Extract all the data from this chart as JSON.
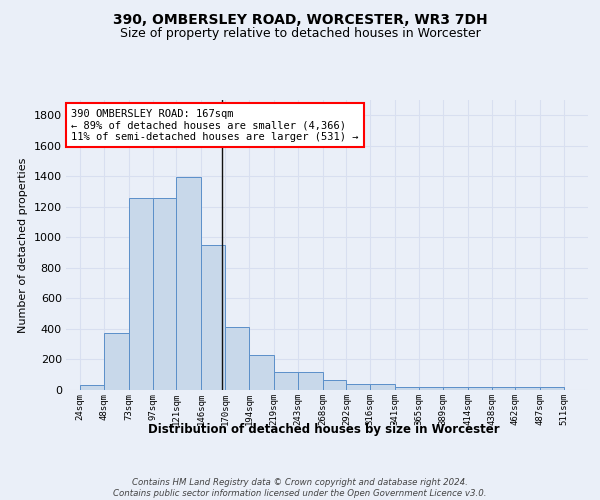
{
  "title1": "390, OMBERSLEY ROAD, WORCESTER, WR3 7DH",
  "title2": "Size of property relative to detached houses in Worcester",
  "xlabel": "Distribution of detached houses by size in Worcester",
  "ylabel": "Number of detached properties",
  "footnote": "Contains HM Land Registry data © Crown copyright and database right 2024.\nContains public sector information licensed under the Open Government Licence v3.0.",
  "bar_left_edges": [
    24,
    48,
    73,
    97,
    121,
    146,
    170,
    194,
    219,
    243,
    268,
    292,
    316,
    341,
    365,
    389,
    414,
    438,
    462,
    487
  ],
  "bar_heights": [
    30,
    375,
    1255,
    1255,
    1395,
    950,
    410,
    230,
    115,
    115,
    68,
    42,
    42,
    18,
    18,
    18,
    18,
    18,
    18,
    18
  ],
  "bar_widths": [
    24,
    25,
    24,
    24,
    25,
    24,
    24,
    25,
    24,
    25,
    24,
    24,
    25,
    24,
    24,
    25,
    24,
    24,
    25,
    24
  ],
  "bar_color": "#c8d8ea",
  "bar_edge_color": "#5b8fc9",
  "property_line_x": 167,
  "property_line_color": "#111111",
  "annotation_text": "390 OMBERSLEY ROAD: 167sqm\n← 89% of detached houses are smaller (4,366)\n11% of semi-detached houses are larger (531) →",
  "annotation_box_color": "white",
  "annotation_box_edge_color": "red",
  "ylim": [
    0,
    1900
  ],
  "xlim": [
    10,
    535
  ],
  "tick_positions": [
    24,
    48,
    73,
    97,
    121,
    146,
    170,
    194,
    219,
    243,
    268,
    292,
    316,
    341,
    365,
    389,
    414,
    438,
    462,
    487,
    511
  ],
  "tick_labels": [
    "24sqm",
    "48sqm",
    "73sqm",
    "97sqm",
    "121sqm",
    "146sqm",
    "170sqm",
    "194sqm",
    "219sqm",
    "243sqm",
    "268sqm",
    "292sqm",
    "316sqm",
    "341sqm",
    "365sqm",
    "389sqm",
    "414sqm",
    "438sqm",
    "462sqm",
    "487sqm",
    "511sqm"
  ],
  "grid_color": "#d8dff0",
  "bg_color": "#eaeff8",
  "yticks": [
    0,
    200,
    400,
    600,
    800,
    1000,
    1200,
    1400,
    1600,
    1800
  ]
}
